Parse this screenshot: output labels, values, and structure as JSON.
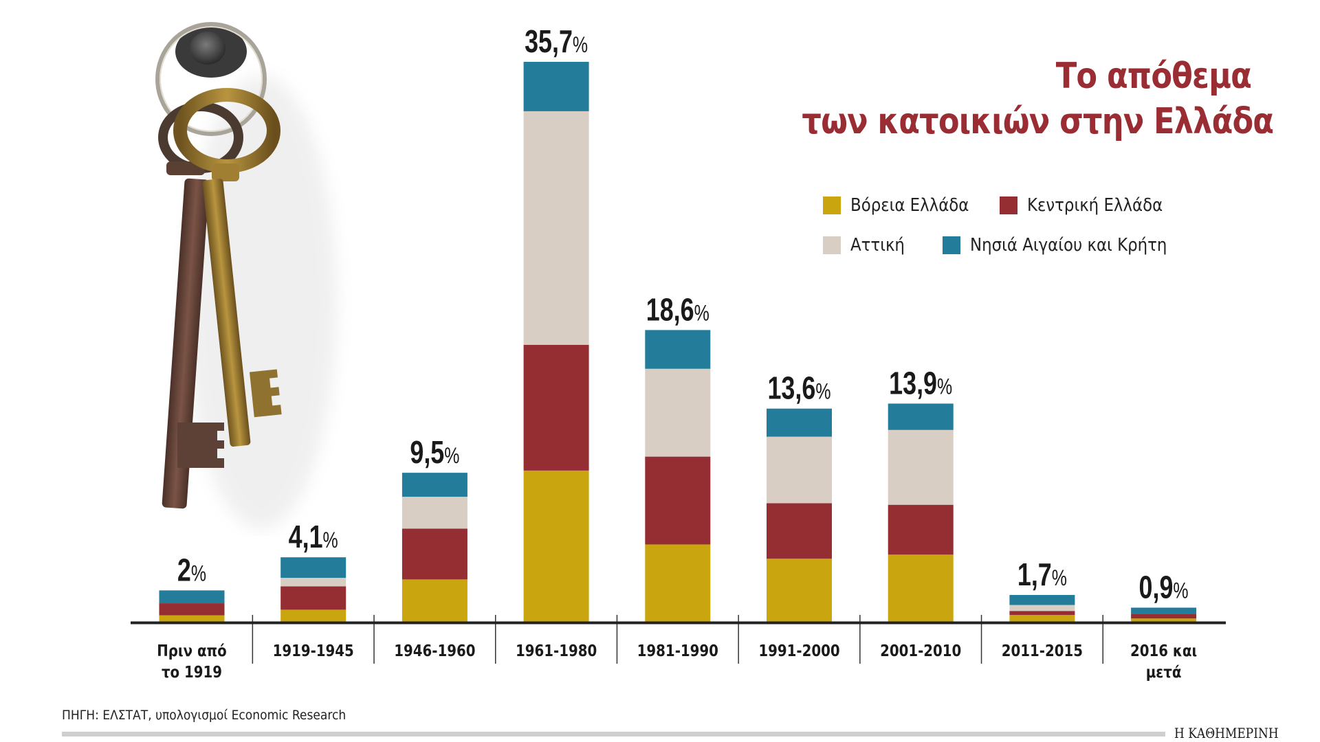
{
  "chart_data": {
    "type": "bar",
    "stacked": true,
    "title": "Το απόθεμα των κατοικιών στην Ελλάδα",
    "title_lines": [
      "Το απόθεμα",
      "των κατοικιών στην Ελλάδα"
    ],
    "xlabel": "",
    "ylabel": "",
    "ylim": [
      0,
      36
    ],
    "grid": false,
    "legend_position": "top-right",
    "categories": [
      [
        "Πριν από",
        "το 1919"
      ],
      [
        "1919-1945"
      ],
      [
        "1946-1960"
      ],
      [
        "1961-1980"
      ],
      [
        "1981-1990"
      ],
      [
        "1991-2000"
      ],
      [
        "2001-2010"
      ],
      [
        "2011-2015"
      ],
      [
        "2016 και",
        "μετά"
      ]
    ],
    "totals": [
      2,
      4.1,
      9.5,
      35.7,
      18.6,
      13.6,
      13.9,
      1.7,
      0.9
    ],
    "total_labels": [
      "2",
      "4,1",
      "9,5",
      "35,7",
      "18,6",
      "13,6",
      "13,9",
      "1,7",
      "0,9"
    ],
    "unit": "%",
    "series": [
      {
        "name": "Βόρεια Ελλάδα",
        "color": "#C9A50F",
        "values": [
          0.41,
          0.77,
          2.7,
          9.64,
          4.93,
          4.02,
          4.28,
          0.43,
          0.21
        ]
      },
      {
        "name": "Κεντρική Ελλάδα",
        "color": "#952E33",
        "values": [
          0.77,
          1.49,
          3.24,
          8.02,
          5.6,
          3.54,
          3.18,
          0.26,
          0.3
        ]
      },
      {
        "name": "Αττική",
        "color": "#D8CEC4",
        "values": [
          0.0,
          0.54,
          2.03,
          14.89,
          5.6,
          4.24,
          4.77,
          0.38,
          0.0
        ]
      },
      {
        "name": "Νησιά Αιγαίου και Κρήτη",
        "color": "#237C99",
        "values": [
          0.82,
          1.31,
          1.53,
          3.15,
          2.47,
          1.79,
          1.68,
          0.64,
          0.39
        ]
      }
    ]
  },
  "legend": {
    "items": [
      {
        "label": "Βόρεια Ελλάδα",
        "color": "#C9A50F"
      },
      {
        "label": "Κεντρική Ελλάδα",
        "color": "#952E33"
      },
      {
        "label": "Αττική",
        "color": "#D8CEC4"
      },
      {
        "label": "Νησιά Αιγαίου και Κρήτη",
        "color": "#237C99"
      }
    ]
  },
  "footer": {
    "source": "ΠΗΓΗ: ΕΛΣΤΑΤ, υπολογισμοί Economic Research",
    "brand": "Η ΚΑΘΗΜΕΡΙΝΗ"
  },
  "illustration": {
    "icon": "keys-icon"
  },
  "colors": {
    "title": "#992D33",
    "axis": "#222222"
  }
}
